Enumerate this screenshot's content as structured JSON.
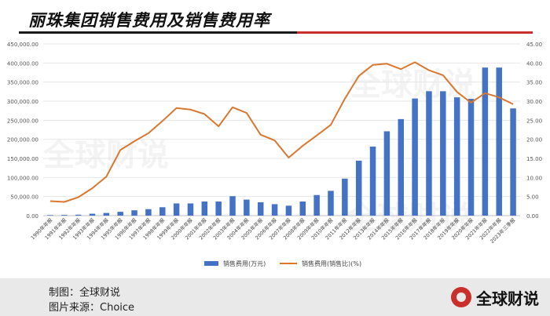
{
  "title": "丽珠集团销售费用及销售费用率",
  "footer": {
    "maker": "制图：全球财说",
    "source": "图片来源：Choice",
    "brand": "全球财说"
  },
  "watermark": "全球财说",
  "colors": {
    "bar": "#4472c4",
    "line": "#d9772f",
    "title_rule_accent": "#c9302c"
  },
  "chart_data": {
    "type": "bar",
    "categories": [
      "1990年年报",
      "1991年年报",
      "1992年年报",
      "1993年年报",
      "1994年年报",
      "1995年年报",
      "1996年年报",
      "1997年年报",
      "1998年年报",
      "1999年年报",
      "2000年年报",
      "2001年年报",
      "2002年年报",
      "2003年年报",
      "2004年年报",
      "2005年年报",
      "2006年年报",
      "2007年年报",
      "2008年年报",
      "2009年年报",
      "2010年年报",
      "2011年年报",
      "2012年年报",
      "2013年年报",
      "2014年年报",
      "2015年年报",
      "2016年年报",
      "2017年年报",
      "2018年年报",
      "2019年年报",
      "2020年年报",
      "2021年年报",
      "2022年年报",
      "2023年三季报"
    ],
    "series": [
      {
        "name": "销售费用(万元)",
        "type": "bar",
        "axis": "left",
        "values": [
          1500,
          1800,
          2500,
          5000,
          7000,
          10000,
          14000,
          17000,
          22000,
          32000,
          32000,
          37000,
          37000,
          51000,
          42000,
          35000,
          30000,
          26000,
          37000,
          54000,
          65000,
          97000,
          144000,
          181000,
          221000,
          253000,
          307000,
          326000,
          326000,
          310000,
          306000,
          388000,
          388000,
          281000
        ]
      },
      {
        "name": "销售费用(销售比)(%)",
        "type": "line",
        "axis": "right",
        "values": [
          3.8,
          3.6,
          4.8,
          7.2,
          10.2,
          17.2,
          19.5,
          21.6,
          24.8,
          28.2,
          27.8,
          26.6,
          23.4,
          28.4,
          26.9,
          21.2,
          19.7,
          15.2,
          18.3,
          21.0,
          23.8,
          30.6,
          36.6,
          39.5,
          39.8,
          38.4,
          40.2,
          38.1,
          36.8,
          32.4,
          29.6,
          32.1,
          31.0,
          29.2
        ]
      }
    ],
    "y_left": {
      "min": 0,
      "max": 450000,
      "step": 50000,
      "ticks": [
        "0.00",
        "50,000.00",
        "100,000.00",
        "150,000.00",
        "200,000.00",
        "250,000.00",
        "300,000.00",
        "350,000.00",
        "400,000.00",
        "450,000.00"
      ]
    },
    "y_right": {
      "min": 0,
      "max": 45,
      "step": 5,
      "ticks": [
        "0.00",
        "5.00",
        "10.00",
        "15.00",
        "20.00",
        "25.00",
        "30.00",
        "35.00",
        "40.00",
        "45.00"
      ]
    },
    "grid": true,
    "legend_position": "bottom-center"
  }
}
